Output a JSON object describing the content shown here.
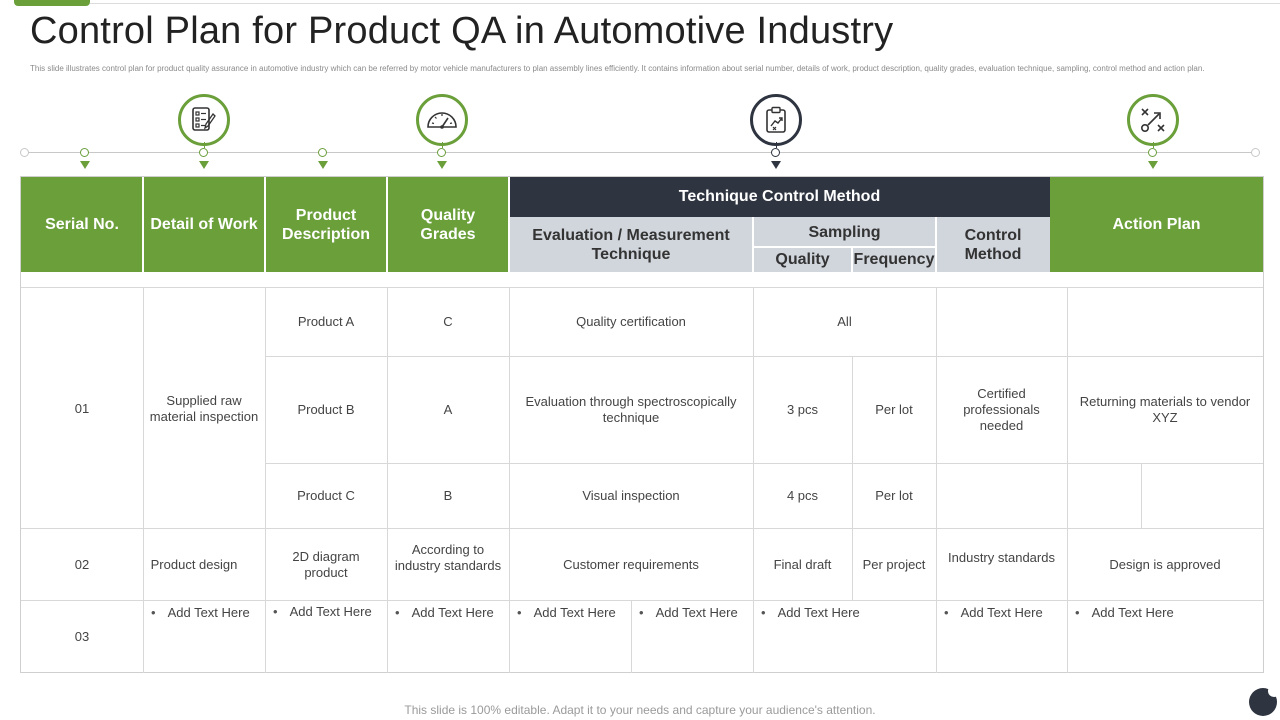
{
  "title": "Control Plan for Product QA in Automotive Industry",
  "subtitle": "This slide illustrates control plan  for product quality assurance in automotive industry which can be referred by motor vehicle manufacturers to plan assembly lines efficiently. It contains information about serial number, details of work, product description, quality grades, evaluation technique, sampling, control method and action plan.",
  "colors": {
    "accent_green": "#6a9f3a",
    "dark": "#2e3440",
    "subheader_gray": "#d1d5dc"
  },
  "timeline": {
    "icons": [
      {
        "name": "checklist-icon",
        "color": "green"
      },
      {
        "name": "gauge-icon",
        "color": "green"
      },
      {
        "name": "clipboard-chart-icon",
        "color": "dark"
      },
      {
        "name": "strategy-xo-icon",
        "color": "green"
      }
    ]
  },
  "table": {
    "headers": {
      "serial": "Serial No.",
      "detail": "Detail of Work",
      "product": "Product Description",
      "quality": "Quality Grades",
      "technique_group": "Technique Control Method",
      "evaluation": "Evaluation / Measurement Technique",
      "sampling": "Sampling",
      "sampling_quality": "Quality",
      "sampling_frequency": "Frequency",
      "control": "Control Method",
      "action": "Action Plan"
    },
    "row1": {
      "serial": "01",
      "detail": "Supplied raw material inspection",
      "control": "Certified professionals needed",
      "action": "Returning  materials to vendor XYZ",
      "sub": [
        {
          "product": "Product A",
          "grade": "C",
          "evaluation": "Quality certification",
          "sampling_all": "All"
        },
        {
          "product": "Product B",
          "grade": "A",
          "evaluation": "Evaluation  through  spectroscopically technique",
          "quality": "3 pcs",
          "frequency": "Per lot"
        },
        {
          "product": "Product C",
          "grade": "B",
          "evaluation": "Visual inspection",
          "quality": "4 pcs",
          "frequency": "Per lot"
        }
      ]
    },
    "row2": {
      "serial": "02",
      "detail": "Product design",
      "product": "2D diagram product",
      "grade": "According to industry standards",
      "evaluation": "Customer requirements",
      "quality": "Final draft",
      "frequency": "Per project",
      "control": "Industry standards",
      "action": "Design is approved"
    },
    "row3": {
      "serial": "03",
      "placeholder": "Add Text Here"
    }
  },
  "footer": "This slide is 100% editable. Adapt it to your needs and capture your audience's attention."
}
